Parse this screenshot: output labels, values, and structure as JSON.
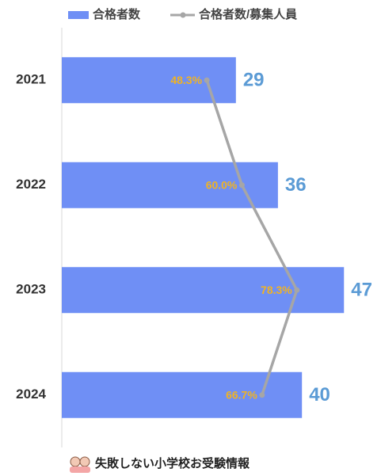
{
  "chart_data": {
    "type": "bar_line",
    "categories": [
      "2021",
      "2022",
      "2023",
      "2024"
    ],
    "series": [
      {
        "name": "合格者数",
        "color": "#6f8ff5",
        "values": [
          29,
          36,
          47,
          40
        ],
        "label_color": "#5b9bd5"
      },
      {
        "name": "合格者数/募集人員",
        "color": "#a6a6a6",
        "axis": "x2",
        "values": [
          48.3,
          60.0,
          78.3,
          66.7
        ],
        "value_labels": [
          "48.3%",
          "60.0%",
          "78.3%",
          "66.7%"
        ],
        "label_color": "#f0b323"
      }
    ],
    "xlim": [
      0,
      50
    ],
    "x2lim": [
      0,
      100
    ],
    "footer": "失敗しない小学校お受験情報"
  }
}
